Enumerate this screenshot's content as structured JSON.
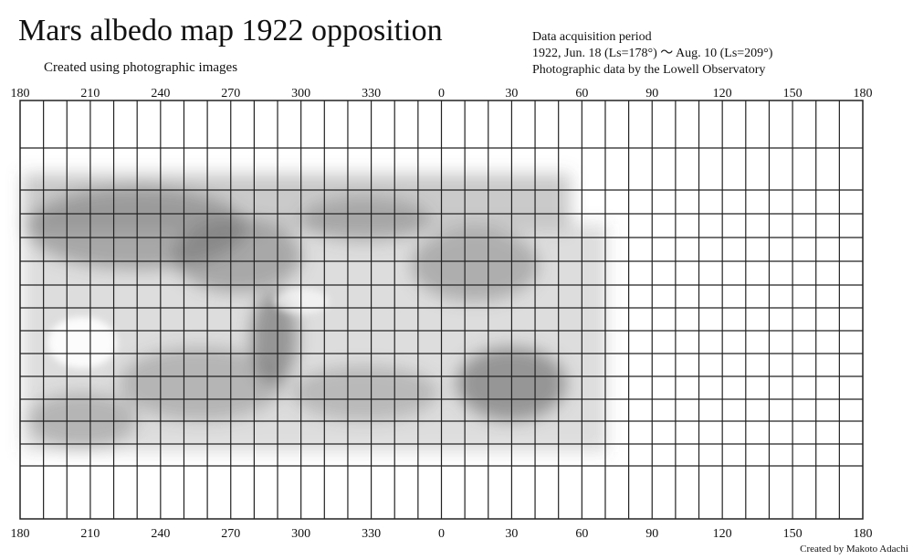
{
  "header": {
    "title": "Mars albedo map 1922 opposition",
    "subtitle": "Created using photographic images",
    "info": [
      "Data acquisition period",
      "1922, Jun. 18 (Ls=178°) ～ Aug. 10 (Ls=209°)",
      "Photographic data by the Lowell Observatory"
    ]
  },
  "map": {
    "longitude_labels": [
      180,
      210,
      240,
      270,
      300,
      330,
      0,
      30,
      60,
      90,
      120,
      150,
      180
    ]
  },
  "footer": {
    "credit": "Created by Makoto Adachi"
  }
}
